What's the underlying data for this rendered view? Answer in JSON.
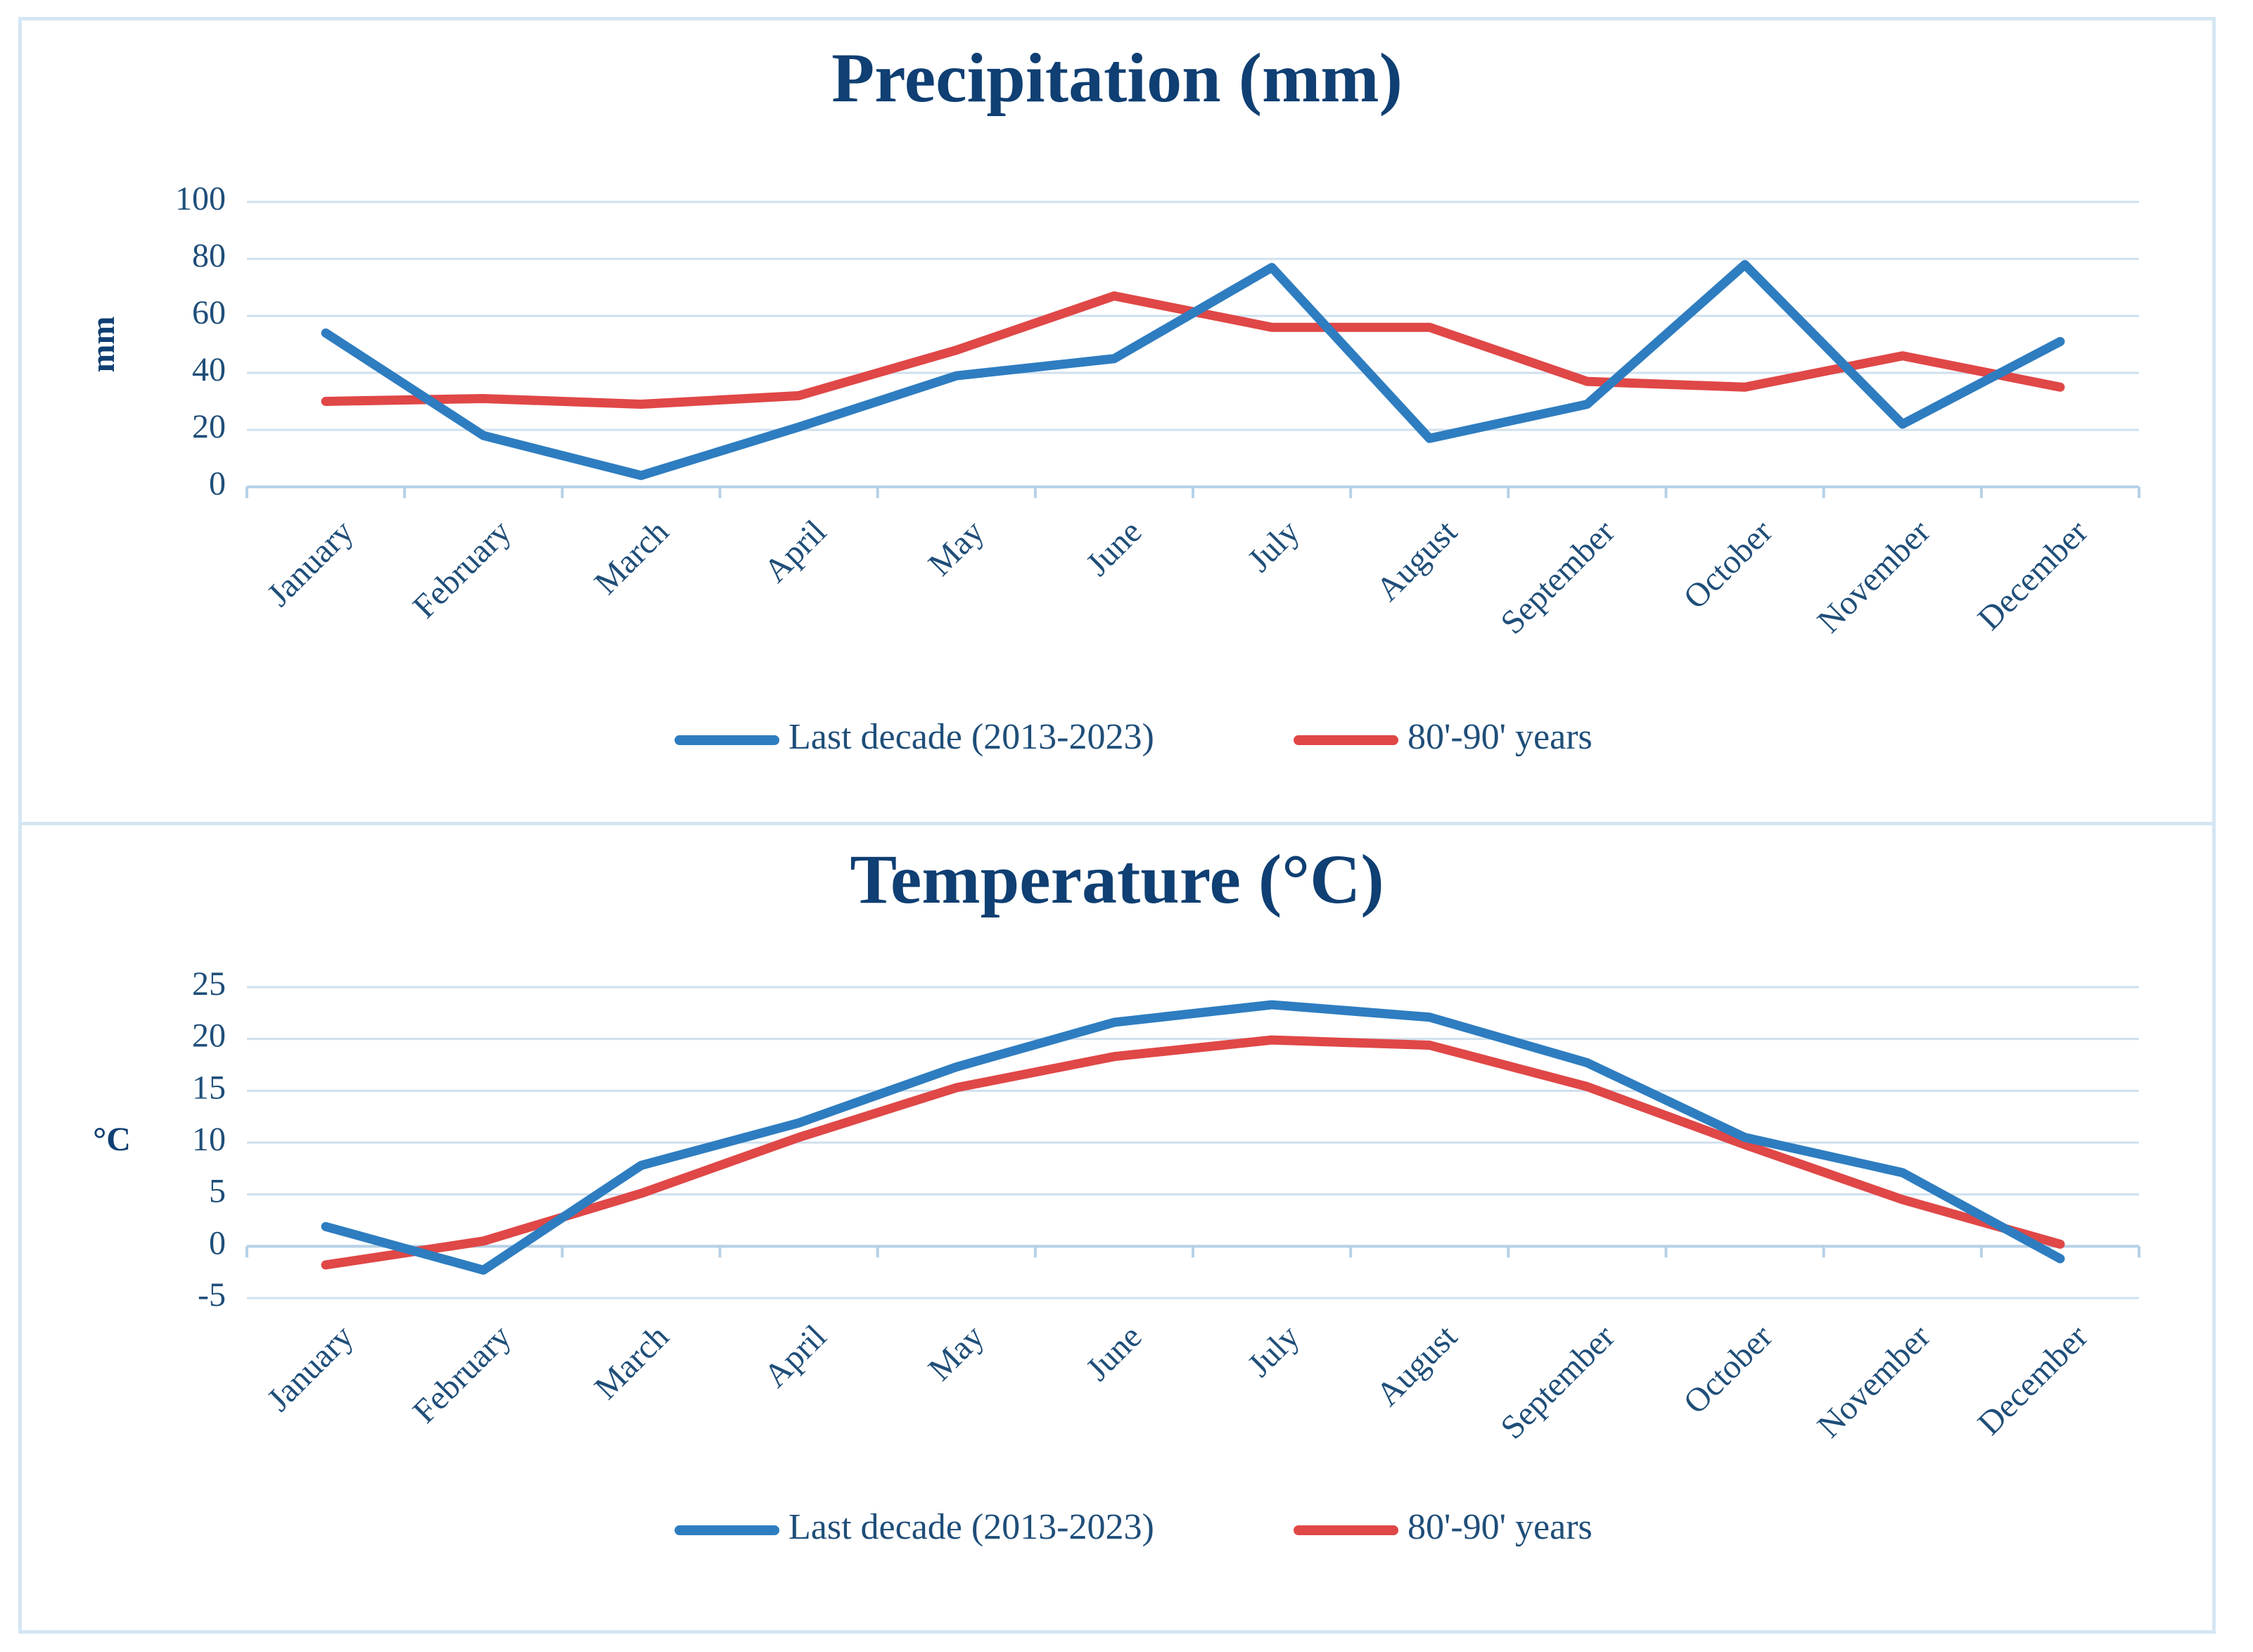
{
  "chart_data": [
    {
      "type": "line",
      "title": "Precipitation (mm)",
      "xlabel": "",
      "ylabel": "mm",
      "ylim": [
        0,
        100
      ],
      "yticks": [
        0,
        20,
        40,
        60,
        80,
        100
      ],
      "categories": [
        "January",
        "February",
        "March",
        "April",
        "May",
        "June",
        "July",
        "August",
        "September",
        "October",
        "November",
        "December"
      ],
      "series": [
        {
          "name": "Last decade (2013-2023)",
          "color": "#2e7dc0",
          "values": [
            54,
            18,
            4,
            21,
            39,
            45,
            77,
            17,
            29,
            78,
            22,
            51
          ]
        },
        {
          "name": "80'-90' years",
          "color": "#e04747",
          "values": [
            30,
            31,
            29,
            32,
            48,
            67,
            56,
            56,
            37,
            35,
            46,
            35
          ]
        }
      ],
      "grid": true,
      "legend": "bottom"
    },
    {
      "type": "line",
      "title": "Temperature (°C)",
      "xlabel": "",
      "ylabel": "°C",
      "ylim": [
        -5,
        25
      ],
      "yticks": [
        -5,
        0,
        5,
        10,
        15,
        20,
        25
      ],
      "categories": [
        "January",
        "February",
        "March",
        "April",
        "May",
        "June",
        "July",
        "August",
        "September",
        "October",
        "November",
        "December"
      ],
      "series": [
        {
          "name": "Last decade (2013-2023)",
          "color": "#2e7dc0",
          "values": [
            1.9,
            -2.3,
            7.8,
            11.9,
            17.3,
            21.6,
            23.3,
            22.1,
            17.7,
            10.5,
            7.1,
            -1.2
          ]
        },
        {
          "name": "80'-90' years",
          "color": "#e04747",
          "values": [
            -1.8,
            0.5,
            5.1,
            10.5,
            15.3,
            18.3,
            19.9,
            19.4,
            15.4,
            9.8,
            4.5,
            0.2
          ]
        }
      ],
      "grid": true,
      "legend": "bottom"
    }
  ]
}
